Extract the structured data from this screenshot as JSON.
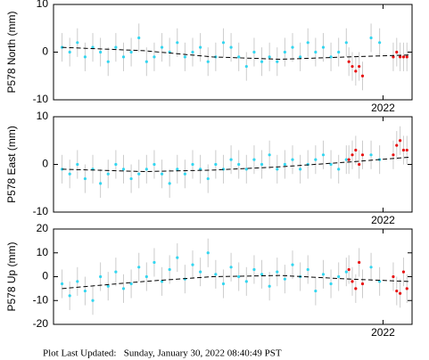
{
  "chart_data": [
    {
      "type": "scatter",
      "ylabel": "P578 North (mm)",
      "xlim": [
        2020.07,
        2022.17
      ],
      "ylim": [
        -10,
        10
      ],
      "xticks": [
        2022
      ],
      "yticks": [
        -10,
        0,
        10
      ],
      "series": [
        {
          "color": "#33d6f0",
          "error": 3,
          "x": [
            2020.12,
            2020.165,
            2020.21,
            2020.255,
            2020.3,
            2020.345,
            2020.39,
            2020.435,
            2020.48,
            2020.525,
            2020.57,
            2020.615,
            2020.66,
            2020.705,
            2020.75,
            2020.795,
            2020.84,
            2020.885,
            2020.93,
            2020.975,
            2021.02,
            2021.065,
            2021.11,
            2021.155,
            2021.2,
            2021.245,
            2021.29,
            2021.335,
            2021.38,
            2021.425,
            2021.47,
            2021.515,
            2021.56,
            2021.605,
            2021.65,
            2021.695,
            2021.74,
            2021.785,
            2021.93,
            2021.98
          ],
          "values": [
            1,
            0,
            2,
            -1,
            1,
            0,
            -2,
            1,
            -1,
            0,
            3,
            -2,
            -1,
            1,
            0,
            2,
            -1,
            0,
            1,
            -2,
            -1,
            2,
            1,
            -1,
            -3,
            0,
            -2,
            -1,
            -2,
            0,
            1,
            -1,
            2,
            0,
            1,
            -1,
            0,
            2,
            3,
            2
          ]
        },
        {
          "color": "#e81010",
          "error": 3,
          "x": [
            2021.8,
            2021.82,
            2021.84,
            2021.86,
            2021.88,
            2022.06,
            2022.08,
            2022.1,
            2022.12,
            2022.14
          ],
          "values": [
            -2,
            -3,
            -4,
            -3,
            -5,
            -1,
            0,
            -1,
            -1,
            -1
          ]
        },
        {
          "color": "#000000",
          "dash": true,
          "x": [
            2020.12,
            2020.6,
            2021.0,
            2021.4,
            2021.8,
            2022.15
          ],
          "values": [
            1,
            0.3,
            -1,
            -1.5,
            -1,
            -0.6
          ]
        }
      ]
    },
    {
      "type": "scatter",
      "ylabel": "P578 East (mm)",
      "xlim": [
        2020.07,
        2022.17
      ],
      "ylim": [
        -10,
        10
      ],
      "xticks": [
        2022
      ],
      "yticks": [
        -10,
        0,
        10
      ],
      "series": [
        {
          "color": "#33d6f0",
          "error": 3,
          "x": [
            2020.12,
            2020.165,
            2020.21,
            2020.255,
            2020.3,
            2020.345,
            2020.39,
            2020.435,
            2020.48,
            2020.525,
            2020.57,
            2020.615,
            2020.66,
            2020.705,
            2020.75,
            2020.795,
            2020.84,
            2020.885,
            2020.93,
            2020.975,
            2021.02,
            2021.065,
            2021.11,
            2021.155,
            2021.2,
            2021.245,
            2021.29,
            2021.335,
            2021.38,
            2021.425,
            2021.47,
            2021.515,
            2021.56,
            2021.605,
            2021.65,
            2021.695,
            2021.74,
            2021.785,
            2021.93,
            2021.98
          ],
          "values": [
            -1,
            -2,
            0,
            -3,
            -1,
            -4,
            -2,
            0,
            -1,
            -3,
            -2,
            -1,
            0,
            -2,
            -4,
            -1,
            -2,
            0,
            -1,
            -3,
            0,
            -1,
            1,
            0,
            -1,
            1,
            0,
            2,
            -1,
            0,
            1,
            -1,
            0,
            1,
            2,
            0,
            -1,
            1,
            2,
            1
          ]
        },
        {
          "color": "#e81010",
          "error": 3,
          "x": [
            2021.8,
            2021.82,
            2021.84,
            2021.86,
            2021.88,
            2022.06,
            2022.08,
            2022.1,
            2022.12,
            2022.14
          ],
          "values": [
            1,
            2,
            3,
            0,
            2,
            2,
            4,
            5,
            3,
            3
          ]
        },
        {
          "color": "#000000",
          "dash": true,
          "x": [
            2020.12,
            2020.6,
            2021.0,
            2021.4,
            2021.8,
            2022.15
          ],
          "values": [
            -1,
            -1.5,
            -1.2,
            -0.5,
            0.5,
            1.5
          ]
        }
      ]
    },
    {
      "type": "scatter",
      "ylabel": "P578 Up (mm)",
      "xlim": [
        2020.07,
        2022.17
      ],
      "ylim": [
        -20,
        20
      ],
      "xticks": [
        2022
      ],
      "yticks": [
        -20,
        -10,
        0,
        10,
        20
      ],
      "series": [
        {
          "color": "#33d6f0",
          "error": 6,
          "x": [
            2020.12,
            2020.165,
            2020.21,
            2020.255,
            2020.3,
            2020.345,
            2020.39,
            2020.435,
            2020.48,
            2020.525,
            2020.57,
            2020.615,
            2020.66,
            2020.705,
            2020.75,
            2020.795,
            2020.84,
            2020.885,
            2020.93,
            2020.975,
            2021.02,
            2021.065,
            2021.11,
            2021.155,
            2021.2,
            2021.245,
            2021.29,
            2021.335,
            2021.38,
            2021.425,
            2021.47,
            2021.515,
            2021.56,
            2021.605,
            2021.65,
            2021.695,
            2021.74,
            2021.785,
            2021.93,
            2021.98
          ],
          "values": [
            -3,
            -8,
            -2,
            -6,
            -10,
            0,
            -4,
            2,
            -5,
            -3,
            4,
            0,
            6,
            -2,
            3,
            8,
            -1,
            5,
            2,
            10,
            1,
            -3,
            4,
            0,
            -2,
            3,
            1,
            -4,
            2,
            -1,
            5,
            0,
            3,
            -6,
            1,
            -3,
            0,
            2,
            4,
            -2
          ]
        },
        {
          "color": "#e81010",
          "error": 6,
          "x": [
            2021.8,
            2021.82,
            2021.84,
            2021.86,
            2021.88,
            2022.06,
            2022.08,
            2022.1,
            2022.12,
            2022.14
          ],
          "values": [
            3,
            -2,
            -5,
            6,
            -3,
            0,
            -6,
            -7,
            2,
            -5
          ]
        },
        {
          "color": "#000000",
          "dash": true,
          "x": [
            2020.12,
            2020.6,
            2021.0,
            2021.4,
            2021.8,
            2022.15
          ],
          "values": [
            -5,
            -2,
            0,
            0.5,
            -1,
            -2
          ]
        }
      ]
    }
  ],
  "footer": "Plot Last Updated:   Sunday, January 30, 2022 08:40:49 PST"
}
